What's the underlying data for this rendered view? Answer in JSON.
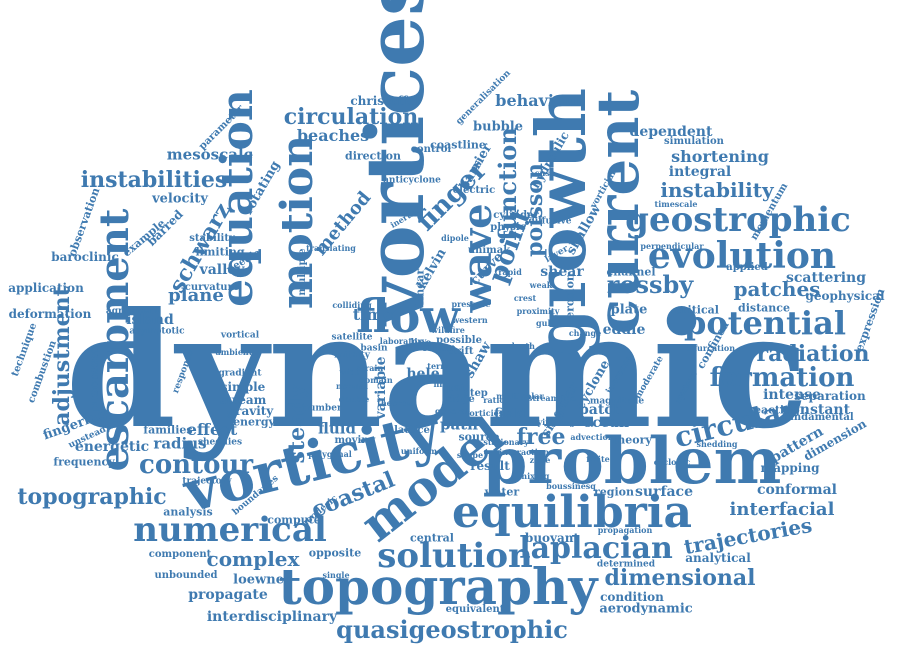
{
  "cloud": {
    "color": "#3f7ab0",
    "words": [
      {
        "text": "dynamic"
      },
      {
        "text": "vortices"
      },
      {
        "text": "growth"
      },
      {
        "text": "current"
      },
      {
        "text": "problem"
      },
      {
        "text": "vorticity"
      },
      {
        "text": "model"
      },
      {
        "text": "equilibria"
      },
      {
        "text": "topography"
      },
      {
        "text": "equation"
      },
      {
        "text": "motion"
      },
      {
        "text": "escarpment"
      },
      {
        "text": "geostrophic"
      },
      {
        "text": "evolution"
      },
      {
        "text": "potential"
      },
      {
        "text": "numerical"
      },
      {
        "text": "solution"
      },
      {
        "text": "laplacian"
      },
      {
        "text": "quasigeostrophic"
      },
      {
        "text": "flow"
      },
      {
        "text": "wave"
      },
      {
        "text": "finger"
      },
      {
        "text": "function"
      },
      {
        "text": "poisson"
      },
      {
        "text": "point"
      },
      {
        "text": "circulation"
      },
      {
        "text": "instabilities"
      },
      {
        "text": "rossby"
      },
      {
        "text": "formation"
      },
      {
        "text": "circular"
      },
      {
        "text": "contour"
      },
      {
        "text": "topographic"
      },
      {
        "text": "coastal"
      },
      {
        "text": "dimensional"
      },
      {
        "text": "adjustment"
      },
      {
        "text": "schwarz"
      },
      {
        "text": "method"
      },
      {
        "text": "steady"
      },
      {
        "text": "free"
      },
      {
        "text": "radiation"
      },
      {
        "text": "instability"
      },
      {
        "text": "patches"
      },
      {
        "text": "trajectories"
      },
      {
        "text": "complex"
      },
      {
        "text": "interfacial"
      },
      {
        "text": "shortening"
      },
      {
        "text": "integral"
      },
      {
        "text": "dependent"
      },
      {
        "text": "behaviour"
      },
      {
        "text": "beaches"
      },
      {
        "text": "mesoscale"
      },
      {
        "text": "plane"
      },
      {
        "text": "valley"
      },
      {
        "text": "island"
      },
      {
        "text": "effect"
      },
      {
        "text": "radius"
      },
      {
        "text": "energetic"
      },
      {
        "text": "fingering"
      },
      {
        "text": "processes"
      },
      {
        "text": "fluid"
      },
      {
        "text": "time"
      },
      {
        "text": "ocean"
      },
      {
        "text": "surface"
      },
      {
        "text": "conformal"
      },
      {
        "text": "scattering"
      },
      {
        "text": "geophysical"
      },
      {
        "text": "intense"
      },
      {
        "text": "constant"
      },
      {
        "text": "separation"
      },
      {
        "text": "eddie"
      },
      {
        "text": "plate"
      },
      {
        "text": "cyclone"
      },
      {
        "text": "pattern"
      },
      {
        "text": "dimension"
      },
      {
        "text": "mapping"
      },
      {
        "text": "interdisciplinary"
      },
      {
        "text": "propagate"
      },
      {
        "text": "loewner"
      },
      {
        "text": "aerodynamic"
      },
      {
        "text": "condition"
      },
      {
        "text": "analytical"
      },
      {
        "text": "region"
      },
      {
        "text": "patch"
      },
      {
        "text": "path"
      },
      {
        "text": "field"
      },
      {
        "text": "result"
      },
      {
        "text": "water"
      },
      {
        "text": "christoffel"
      },
      {
        "text": "bubble"
      },
      {
        "text": "barrier"
      },
      {
        "text": "coastline"
      },
      {
        "text": "direction"
      },
      {
        "text": "rotating"
      },
      {
        "text": "velocity"
      },
      {
        "text": "barred"
      },
      {
        "text": "baroclinic"
      },
      {
        "text": "application"
      },
      {
        "text": "deformation"
      },
      {
        "text": "technique"
      },
      {
        "text": "combustion"
      },
      {
        "text": "frequency"
      },
      {
        "text": "families"
      },
      {
        "text": "simple"
      },
      {
        "text": "stream"
      },
      {
        "text": "gravity"
      },
      {
        "text": "energy"
      },
      {
        "text": "kelvin"
      },
      {
        "text": "curve"
      },
      {
        "text": "shear"
      },
      {
        "text": "channel"
      },
      {
        "text": "applied"
      },
      {
        "text": "distance"
      },
      {
        "text": "critical"
      },
      {
        "text": "simulation"
      },
      {
        "text": "momentum"
      },
      {
        "text": "hydraulic"
      },
      {
        "text": "shallow"
      },
      {
        "text": "erosion"
      },
      {
        "text": "singular"
      },
      {
        "text": "variable"
      },
      {
        "text": "shaw"
      },
      {
        "text": "hele"
      },
      {
        "text": "source"
      },
      {
        "text": "theory"
      },
      {
        "text": "fundamental"
      },
      {
        "text": "expression"
      },
      {
        "text": "confined"
      },
      {
        "text": "reacting"
      },
      {
        "text": "buoyant"
      },
      {
        "text": "central"
      },
      {
        "text": "opposite"
      },
      {
        "text": "compute"
      },
      {
        "text": "analysis"
      },
      {
        "text": "unbounded"
      },
      {
        "text": "component"
      },
      {
        "text": "equivalent"
      },
      {
        "text": "determined"
      },
      {
        "text": "curvature"
      },
      {
        "text": "limiting"
      },
      {
        "text": "stability"
      },
      {
        "text": "example"
      },
      {
        "text": "observation"
      },
      {
        "text": "parameter"
      },
      {
        "text": "electric"
      },
      {
        "text": "cylinder"
      },
      {
        "text": "physic"
      },
      {
        "text": "diffusive"
      },
      {
        "text": "unimak"
      },
      {
        "text": "anticyclone"
      },
      {
        "text": "control"
      },
      {
        "text": "line"
      },
      {
        "text": "step"
      },
      {
        "text": "moving"
      },
      {
        "text": "lattice"
      },
      {
        "text": "needle"
      },
      {
        "text": "agreement"
      },
      {
        "text": "asymptotic"
      },
      {
        "text": "unsteady"
      },
      {
        "text": "sheddies"
      },
      {
        "text": "trajectory"
      },
      {
        "text": "response"
      },
      {
        "text": "vortical"
      },
      {
        "text": "gradient"
      },
      {
        "text": "number"
      },
      {
        "text": "boundaries"
      },
      {
        "text": "geodesic"
      },
      {
        "text": "linear"
      },
      {
        "text": "multiple"
      },
      {
        "text": "generalisation"
      },
      {
        "text": "satellite"
      },
      {
        "text": "infinity"
      },
      {
        "text": "basin"
      },
      {
        "text": "possible"
      },
      {
        "text": "drift"
      },
      {
        "text": "pair"
      },
      {
        "text": "ridge"
      },
      {
        "text": "layer"
      },
      {
        "text": "western"
      },
      {
        "text": "vorticial"
      },
      {
        "text": "timescale"
      },
      {
        "text": "perpendicular"
      },
      {
        "text": "translating"
      },
      {
        "text": "colliding"
      },
      {
        "text": "ambient"
      },
      {
        "text": "polygonal"
      },
      {
        "text": "shape"
      },
      {
        "text": "width"
      },
      {
        "text": "normal"
      },
      {
        "text": "double"
      },
      {
        "text": "subject"
      },
      {
        "text": "zone"
      },
      {
        "text": "increase"
      },
      {
        "text": "moderate"
      },
      {
        "text": "system"
      },
      {
        "text": "magnitude"
      },
      {
        "text": "change"
      },
      {
        "text": "cyclonic"
      },
      {
        "text": "bifurcation"
      },
      {
        "text": "shedding"
      },
      {
        "text": "tangency"
      },
      {
        "text": "varying"
      },
      {
        "text": "single"
      },
      {
        "text": "multipolar"
      },
      {
        "text": "ratio"
      },
      {
        "text": "term"
      },
      {
        "text": "depth"
      },
      {
        "text": "fire"
      },
      {
        "text": "crest"
      },
      {
        "text": "proximity"
      },
      {
        "text": "pressure"
      },
      {
        "text": "gulf"
      },
      {
        "text": "vorticies"
      },
      {
        "text": "strain"
      },
      {
        "text": "domain"
      },
      {
        "text": "wildfire"
      },
      {
        "text": "general"
      },
      {
        "text": "laboratory"
      },
      {
        "text": "rapid"
      },
      {
        "text": "weak"
      },
      {
        "text": "inertia"
      },
      {
        "text": "stationary"
      },
      {
        "text": "interaction"
      },
      {
        "text": "boussinesq"
      },
      {
        "text": "advection"
      },
      {
        "text": "theorem"
      },
      {
        "text": "finite"
      },
      {
        "text": "cusp"
      },
      {
        "text": "mixing"
      },
      {
        "text": "propagation"
      },
      {
        "text": "streamline"
      },
      {
        "text": "uniform"
      },
      {
        "text": "dipole"
      },
      {
        "text": "existence"
      },
      {
        "text": "conservation"
      },
      {
        "text": "friction"
      },
      {
        "text": "protrusion"
      },
      {
        "text": "mode"
      },
      {
        "text": "effective"
      },
      {
        "text": "upstream"
      }
    ]
  }
}
